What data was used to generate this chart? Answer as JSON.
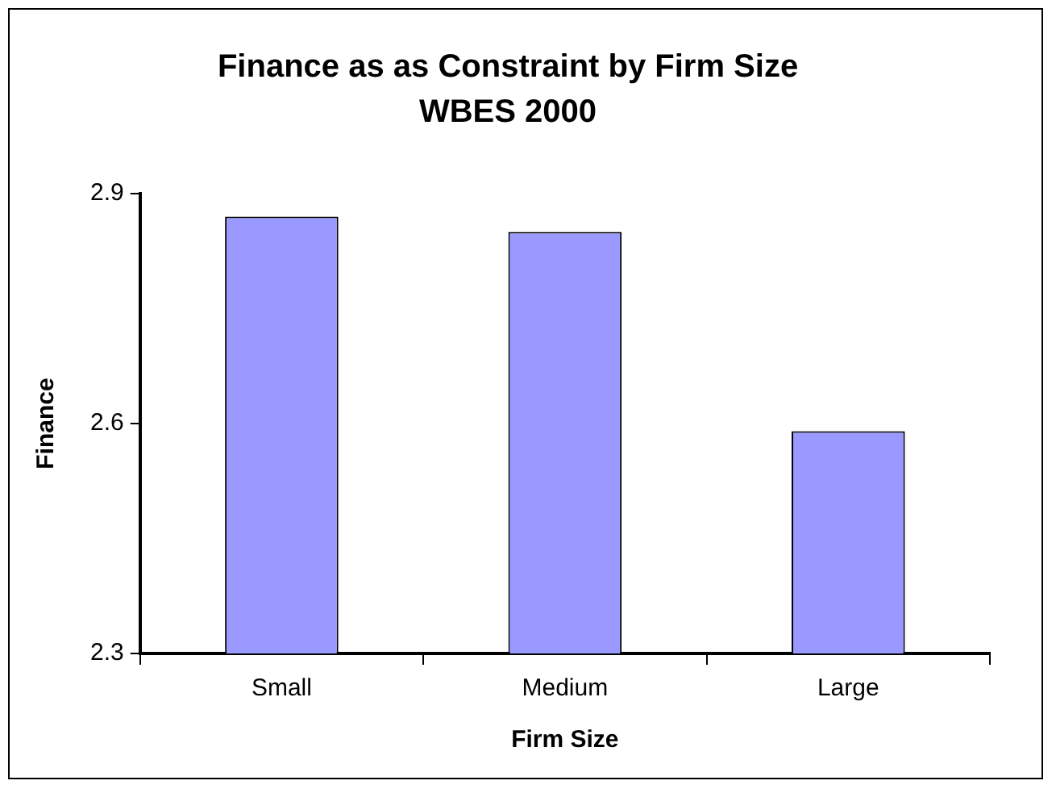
{
  "chart_data": {
    "type": "bar",
    "title": "Finance as as Constraint by Firm Size",
    "subtitle": "WBES 2000",
    "xlabel": "Firm Size",
    "ylabel": "Finance",
    "categories": [
      "Small",
      "Medium",
      "Large"
    ],
    "values": [
      2.87,
      2.85,
      2.59
    ],
    "color": "#9999ff",
    "ylim": [
      2.3,
      2.9
    ],
    "yticks": [
      2.3,
      2.6,
      2.9
    ],
    "grid": false,
    "legend": false
  }
}
